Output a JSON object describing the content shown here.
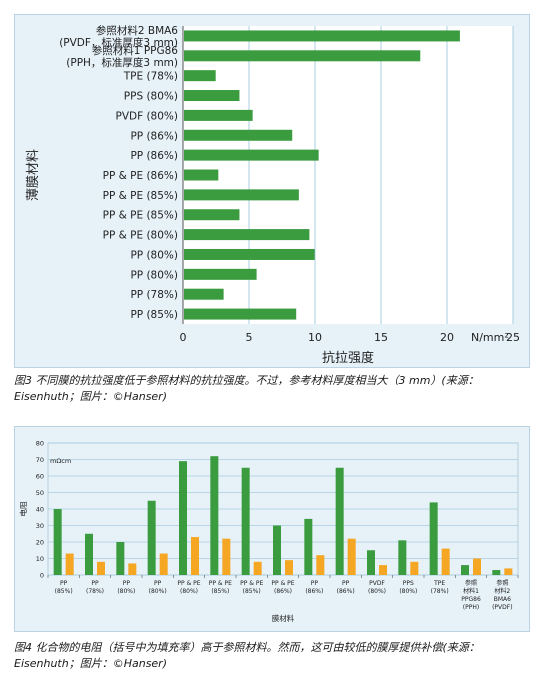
{
  "captions": {
    "fig3": "图3 不同膜的抗拉强度低于参照材料的抗拉强度。不过，参考材料厚度相当大（3 mm）(来源：Eisenhuth；图片：©Hanser)",
    "fig4": "图4 化合物的电阻（括号中为填充率）高于参照材料。然而，这可由较低的膜厚提供补偿(来源：Eisenhuth；图片：©Hanser)"
  },
  "chart_data": [
    {
      "type": "bar",
      "orientation": "horizontal",
      "title": "",
      "ylabel": "薄膜材料",
      "xlabel": "抗拉强度",
      "x_unit": "N/mm²",
      "xlim": [
        0,
        25
      ],
      "x_ticks": [
        "0",
        "5",
        "10",
        "15",
        "20",
        "25"
      ],
      "grid": true,
      "colors": {
        "bar": "#3a9b3f",
        "plot_bg": "#ffffff",
        "grid": "#a9cde0"
      },
      "categories": [
        [
          "参照材料2 BMA6",
          "(PVDF，标准厚度3 mm)"
        ],
        [
          "参照材料1 PPG86",
          "(PPH，标准厚度3 mm)"
        ],
        [
          "TPE (78%)"
        ],
        [
          "PPS (80%)"
        ],
        [
          "PVDF (80%)"
        ],
        [
          "PP (86%)"
        ],
        [
          "PP (86%)"
        ],
        [
          "PP & PE (86%)"
        ],
        [
          "PP & PE (85%)"
        ],
        [
          "PP & PE (85%)"
        ],
        [
          "PP & PE (80%)"
        ],
        [
          "PP (80%)"
        ],
        [
          "PP (80%)"
        ],
        [
          "PP (78%)"
        ],
        [
          "PP (85%)"
        ]
      ],
      "values": [
        20.9,
        17.9,
        2.4,
        4.2,
        5.2,
        8.2,
        10.2,
        2.6,
        8.7,
        4.2,
        9.5,
        9.9,
        5.5,
        3.0,
        8.5
      ]
    },
    {
      "type": "bar",
      "title": "",
      "ylabel": "电阻",
      "y_unit": "mΩcm",
      "xlabel": "膜材料",
      "ylim": [
        0,
        80
      ],
      "y_ticks": [
        "0",
        "10",
        "20",
        "30",
        "40",
        "50",
        "60",
        "70",
        "80"
      ],
      "grid": true,
      "colors": {
        "plot_bg": "#e6f1f8",
        "grid": "#a9cde0"
      },
      "categories": [
        [
          "PP",
          "(85%)"
        ],
        [
          "PP",
          "(78%)"
        ],
        [
          "PP",
          "(80%)"
        ],
        [
          "PP",
          "(80%)"
        ],
        [
          "PP & PE",
          "(80%)"
        ],
        [
          "PP & PE",
          "(85%)"
        ],
        [
          "PP & PE",
          "(85%)"
        ],
        [
          "PP & PE",
          "(86%)"
        ],
        [
          "PP",
          "(86%)"
        ],
        [
          "PP",
          "(86%)"
        ],
        [
          "PVDF",
          "(80%)"
        ],
        [
          "PPS",
          "(80%)"
        ],
        [
          "TPE",
          "(78%)"
        ],
        [
          "参照",
          "材料1",
          "PPG86",
          "(PPH)"
        ],
        [
          "参照",
          "材料2",
          "BMA6",
          "(PVDF)"
        ]
      ],
      "series": [
        {
          "color": "#3a9b3f",
          "values": [
            40,
            25,
            20,
            45,
            69,
            72,
            65,
            30,
            34,
            65,
            15,
            21,
            44,
            6,
            3
          ]
        },
        {
          "color": "#f5a623",
          "values": [
            13,
            8,
            7,
            13,
            23,
            22,
            8,
            9,
            12,
            22,
            6,
            8,
            16,
            10,
            4
          ]
        }
      ]
    }
  ]
}
